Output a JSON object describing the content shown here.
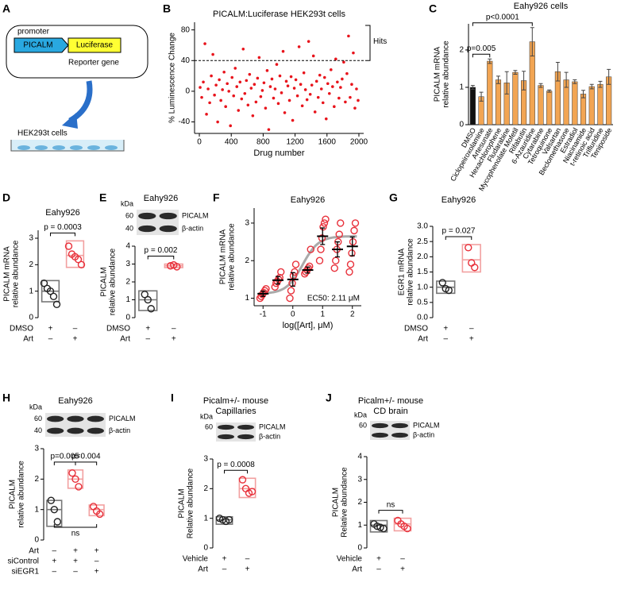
{
  "diagram": {
    "panel": "A",
    "promoter": "promoter",
    "gene": "PICALM",
    "reporter": "Luciferase",
    "reporter_label": "Reporter gene",
    "cells": "HEK293t cells"
  },
  "chart_data": [
    {
      "type": "scatter",
      "panel": "B",
      "title": "PICALM:Luciferase HEK293t cells",
      "xlabel": "Drug number",
      "ylabel": "% Luminescence Change",
      "color": "#e8141c",
      "threshold": 40,
      "annotations": [
        "Hits"
      ],
      "xlim": [
        -60,
        2060
      ],
      "xticks": [
        0,
        400,
        800,
        1200,
        1600,
        2000
      ],
      "ylim": [
        -55,
        90
      ],
      "yticks": [
        -40,
        0,
        40,
        80
      ],
      "x": [
        10,
        30,
        50,
        70,
        90,
        110,
        130,
        150,
        170,
        190,
        210,
        230,
        250,
        270,
        290,
        310,
        330,
        350,
        370,
        390,
        410,
        430,
        450,
        470,
        490,
        510,
        530,
        550,
        570,
        590,
        610,
        630,
        650,
        670,
        690,
        710,
        730,
        750,
        770,
        790,
        810,
        830,
        850,
        870,
        890,
        910,
        930,
        950,
        970,
        990,
        1010,
        1030,
        1050,
        1070,
        1090,
        1110,
        1130,
        1150,
        1170,
        1190,
        1210,
        1230,
        1250,
        1270,
        1290,
        1310,
        1330,
        1350,
        1370,
        1390,
        1410,
        1430,
        1450,
        1470,
        1490,
        1510,
        1530,
        1550,
        1570,
        1590,
        1610,
        1630,
        1650,
        1670,
        1690,
        1710,
        1730,
        1750,
        1770,
        1790,
        1810,
        1830,
        1850,
        1870,
        1890,
        1910,
        1930,
        1950,
        1970,
        1990
      ],
      "values": [
        5,
        -8,
        12,
        62,
        -30,
        3,
        -15,
        20,
        48,
        -5,
        8,
        -40,
        15,
        -12,
        2,
        25,
        -20,
        10,
        0,
        -45,
        18,
        -6,
        30,
        6,
        -25,
        12,
        -10,
        55,
        -3,
        14,
        -18,
        22,
        4,
        -32,
        9,
        -14,
        17,
        44,
        -7,
        1,
        11,
        -22,
        27,
        -50,
        6,
        16,
        -9,
        3,
        35,
        -16,
        20,
        -2,
        52,
        -28,
        13,
        7,
        -12,
        19,
        -38,
        4,
        15,
        -6,
        58,
        9,
        -19,
        24,
        2,
        -11,
        65,
        -4,
        8,
        46,
        -27,
        13,
        -8,
        21,
        3,
        -15,
        18,
        -36,
        10,
        -3,
        28,
        6,
        -20,
        42,
        12,
        -9,
        5,
        16,
        38,
        -14,
        23,
        72,
        -8,
        9,
        50,
        -22,
        3,
        -12
      ]
    },
    {
      "type": "bar",
      "panel": "C",
      "title": "Eahy926 cells",
      "ylabel": [
        "PICALM mRNA",
        "relative abundance"
      ],
      "ylim": [
        0,
        2.7
      ],
      "yticks": [
        0,
        1,
        2
      ],
      "categories": [
        "DMSO",
        "Ciclopeiroxolamine",
        "Artesunate",
        "Hexachlorophene",
        "Fludarabine",
        "Mycophenolate Mofetil",
        "Rifabutin",
        "6-Azauridine",
        "Cytarabine",
        "Tetroquinone",
        "Valsartan",
        "Beclomethasone",
        "Estradiol",
        "Niacinamide",
        "t-retinoic acid",
        "Trifluridine",
        "Teniposide"
      ],
      "values": [
        1.0,
        0.75,
        1.7,
        1.2,
        1.12,
        1.4,
        1.18,
        2.22,
        1.05,
        0.9,
        1.42,
        1.2,
        1.15,
        0.82,
        1.02,
        1.08,
        1.28
      ],
      "errors": [
        0.05,
        0.12,
        0.06,
        0.1,
        0.3,
        0.05,
        0.25,
        0.38,
        0.05,
        0.03,
        0.25,
        0.2,
        0.05,
        0.1,
        0.06,
        0.08,
        0.2
      ],
      "colors": [
        "#111111",
        "#f2a553",
        "#f2a553",
        "#f2a553",
        "#f2a553",
        "#f2a553",
        "#f2a553",
        "#f2a553",
        "#f2a553",
        "#f2a553",
        "#f2a553",
        "#f2a553",
        "#f2a553",
        "#f2a553",
        "#f2a553",
        "#f2a553",
        "#f2a553"
      ],
      "annotations": [
        "p=0.005",
        "p<0.0001"
      ]
    },
    {
      "type": "box",
      "panel": "D",
      "title": "Eahy926",
      "ylabel": [
        "PICALM mRNA",
        "relative abundance"
      ],
      "ylim": [
        0,
        3.3
      ],
      "yticks": [
        0,
        1,
        2,
        3
      ],
      "groups": [
        {
          "color": "#222222",
          "box_color": "#777777",
          "points": [
            1.3,
            1.1,
            1.0,
            0.8,
            0.5
          ],
          "box": [
            0.6,
            1.0,
            1.4
          ]
        },
        {
          "color": "#e8303a",
          "box_color": "#f2a0a0",
          "points": [
            2.7,
            2.4,
            2.3,
            2.2,
            2.0
          ],
          "box": [
            1.9,
            2.35,
            2.9
          ]
        }
      ],
      "rows": [
        {
          "name": "DMSO",
          "signs": [
            "+",
            "–"
          ]
        },
        {
          "name": "Art",
          "signs": [
            "–",
            "+"
          ]
        }
      ],
      "annotations": [
        "p = 0.0003"
      ]
    },
    {
      "type": "box",
      "panel": "E",
      "title": "Eahy926",
      "ylabel": [
        "PICALM",
        "relative abundance"
      ],
      "blot": {
        "unit": "kDa",
        "markers": [
          60,
          40
        ],
        "bands": [
          "PICALM",
          "β-actin"
        ]
      },
      "ylim": [
        0,
        4
      ],
      "yticks": [
        0,
        1,
        2,
        3,
        4
      ],
      "groups": [
        {
          "color": "#222222",
          "box_color": "#777777",
          "points": [
            1.3,
            1.0,
            0.5
          ],
          "box": [
            0.4,
            1.0,
            1.5
          ]
        },
        {
          "color": "#e8303a",
          "box_color": "#f2a0a0",
          "points": [
            2.9,
            2.95,
            2.85
          ],
          "box": [
            2.8,
            2.9,
            3.0
          ]
        }
      ],
      "rows": [
        {
          "name": "DMSO",
          "signs": [
            "+",
            "–"
          ]
        },
        {
          "name": "Art",
          "signs": [
            "–",
            "+"
          ]
        }
      ],
      "annotations": [
        "p = 0.002"
      ]
    },
    {
      "type": "doseresponse",
      "panel": "F",
      "title": "Eahy926",
      "ylabel": [
        "PICALM mRNA",
        "relative abundance"
      ],
      "xlabel": "log([Art], μM)",
      "xlim": [
        -1.3,
        2.3
      ],
      "xticks": [
        -1,
        0,
        1,
        2
      ],
      "ylim": [
        0.8,
        3.4
      ],
      "yticks": [
        1,
        2,
        3
      ],
      "color": "#e8303a",
      "curve_color": "#aaaaaa",
      "x": [
        -1,
        -0.5,
        0,
        0.5,
        1,
        1.5,
        2
      ],
      "means": [
        1.12,
        1.48,
        1.5,
        1.75,
        2.65,
        2.3,
        2.38
      ],
      "errors": [
        0.07,
        0.1,
        0.18,
        0.08,
        0.22,
        0.2,
        0.25
      ],
      "points": [
        [
          1.0,
          1.05,
          1.1,
          1.15,
          1.2,
          1.25
        ],
        [
          1.3,
          1.4,
          1.45,
          1.5,
          1.55,
          1.7
        ],
        [
          1.0,
          1.2,
          1.4,
          1.6,
          1.7,
          1.9
        ],
        [
          1.65,
          1.7,
          1.75,
          1.8,
          1.85,
          2.3
        ],
        [
          2.0,
          2.3,
          2.6,
          2.9,
          3.0,
          3.1
        ],
        [
          1.8,
          2.0,
          2.3,
          2.5,
          2.7,
          3.0
        ],
        [
          1.7,
          1.9,
          2.2,
          2.5,
          2.8,
          3.0
        ]
      ],
      "ec50": {
        "value": 2.11,
        "label": "EC50: 2.11 μM"
      }
    },
    {
      "type": "box",
      "panel": "G",
      "title": "Eahy926",
      "ylabel": [
        "EGR1 mRNA",
        "relative abundance"
      ],
      "ylim": [
        0,
        3
      ],
      "yticks": [
        {
          "value": 0,
          "label": "0.0"
        },
        {
          "value": 0.5,
          "label": "0.5"
        },
        {
          "value": 1,
          "label": "1.0"
        },
        {
          "value": 1.5,
          "label": "1.5"
        },
        {
          "value": 2,
          "label": "2.0"
        },
        {
          "value": 2.5,
          "label": "2.5"
        },
        {
          "value": 3,
          "label": "3.0"
        }
      ],
      "groups": [
        {
          "color": "#222222",
          "box_color": "#777777",
          "points": [
            1.15,
            0.95,
            0.9
          ],
          "box": [
            0.8,
            1.0,
            1.2
          ]
        },
        {
          "color": "#e8303a",
          "box_color": "#f2a0a0",
          "points": [
            2.3,
            1.8,
            1.65
          ],
          "box": [
            1.5,
            1.9,
            2.4
          ]
        }
      ],
      "rows": [
        {
          "name": "DMSO",
          "signs": [
            "+",
            "–"
          ]
        },
        {
          "name": "Art",
          "signs": [
            "–",
            "+"
          ]
        }
      ],
      "annotations": [
        "p = 0.027"
      ]
    },
    {
      "type": "box",
      "panel": "H",
      "title": "Eahy926",
      "ylabel": [
        "PICALM",
        "relative abundance"
      ],
      "blot": {
        "unit": "kDa",
        "markers": [
          60,
          40
        ],
        "bands": [
          "PICALM",
          "β-actin"
        ]
      },
      "ylim": [
        0,
        3
      ],
      "yticks": [
        0,
        1,
        2,
        3
      ],
      "groups": [
        {
          "color": "#222222",
          "box_color": "#777777",
          "points": [
            1.3,
            1.0,
            0.6
          ],
          "box": [
            0.45,
            1.0,
            1.3
          ]
        },
        {
          "color": "#e8303a",
          "box_color": "#f2a0a0",
          "points": [
            2.2,
            2.0,
            1.75
          ],
          "box": [
            1.7,
            2.0,
            2.3
          ]
        },
        {
          "color": "#e8303a",
          "box_color": "#f2a0a0",
          "points": [
            1.1,
            0.95,
            0.85
          ],
          "box": [
            0.8,
            1.0,
            1.15
          ]
        }
      ],
      "rows": [
        {
          "name": "Art",
          "signs": [
            "–",
            "+",
            "+"
          ]
        },
        {
          "name": "siControl",
          "signs": [
            "+",
            "+",
            "–"
          ]
        },
        {
          "name": "siEGR1",
          "signs": [
            "–",
            "–",
            "+"
          ]
        }
      ],
      "annotations": [
        "p=0.005",
        "p=0.004",
        "ns"
      ]
    },
    {
      "type": "box",
      "panel": "I",
      "title": [
        "Picalm+/- mouse",
        "Capillaries"
      ],
      "ylabel": [
        "PICALM",
        "Relative abundance"
      ],
      "blot": {
        "unit": "kDa",
        "markers": [
          60
        ],
        "bands": [
          "PICALM",
          "β-actin"
        ]
      },
      "ylim": [
        0,
        3
      ],
      "yticks": [
        0,
        1,
        2,
        3
      ],
      "groups": [
        {
          "color": "#222222",
          "box_color": "#777777",
          "points": [
            1.0,
            0.95,
            0.9,
            0.95
          ],
          "box": [
            0.8,
            0.95,
            1.05
          ]
        },
        {
          "color": "#e8303a",
          "box_color": "#f2a0a0",
          "points": [
            2.3,
            2.0,
            1.85,
            1.9
          ],
          "box": [
            1.7,
            2.0,
            2.35
          ]
        }
      ],
      "rows": [
        {
          "name": "Vehicle",
          "signs": [
            "+",
            "–"
          ]
        },
        {
          "name": "Art",
          "signs": [
            "–",
            "+"
          ]
        }
      ],
      "annotations": [
        "p = 0.0008"
      ]
    },
    {
      "type": "box",
      "panel": "J",
      "title": [
        "Picalm+/- mouse",
        "CD brain"
      ],
      "ylabel": [
        "PICALM",
        "Relative abundance"
      ],
      "blot": {
        "unit": "kDa",
        "markers": [
          60
        ],
        "bands": [
          "PICALM",
          "β-actin"
        ]
      },
      "ylim": [
        0,
        4
      ],
      "yticks": [
        0,
        1,
        2,
        3,
        4
      ],
      "groups": [
        {
          "color": "#222222",
          "box_color": "#777777",
          "points": [
            1.05,
            0.95,
            0.9,
            0.85
          ],
          "box": [
            0.7,
            1.0,
            1.2
          ]
        },
        {
          "color": "#e8303a",
          "box_color": "#f2a0a0",
          "points": [
            1.2,
            1.05,
            0.95,
            0.85
          ],
          "box": [
            0.75,
            1.05,
            1.3
          ]
        }
      ],
      "rows": [
        {
          "name": "Vehicle",
          "signs": [
            "+",
            "–"
          ]
        },
        {
          "name": "Art",
          "signs": [
            "–",
            "+"
          ]
        }
      ],
      "annotations": [
        "ns"
      ]
    }
  ]
}
